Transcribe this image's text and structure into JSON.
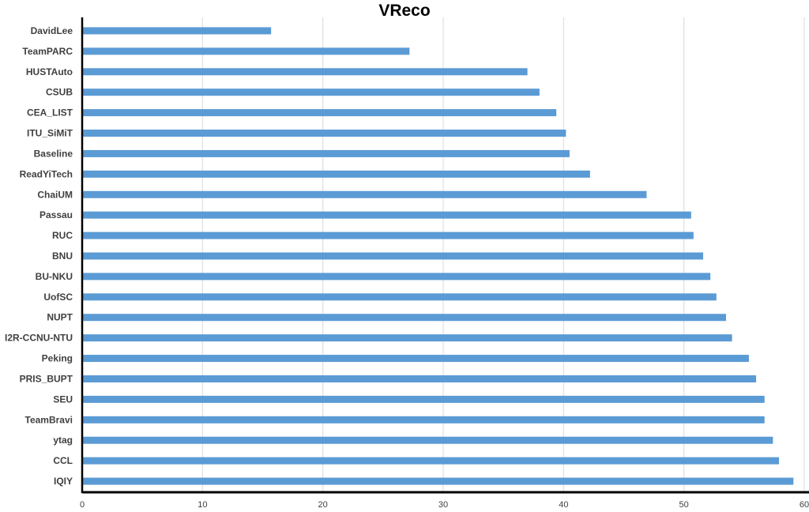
{
  "chart_data": {
    "type": "bar",
    "orientation": "horizontal",
    "title": "VReco",
    "xlabel": "",
    "ylabel": "",
    "xlim": [
      0,
      60
    ],
    "x_ticks": [
      0,
      10,
      20,
      30,
      40,
      50,
      60
    ],
    "grid": true,
    "legend": "none",
    "bar_color": "#5b9bd5",
    "categories": [
      "DavidLee",
      "TeamPARC",
      "HUSTAuto",
      "CSUB",
      "CEA_LIST",
      "ITU_SiMiT",
      "Baseline",
      "ReadYiTech",
      "ChaiUM",
      "Passau",
      "RUC",
      "BNU",
      "BU-NKU",
      "UofSC",
      "NUPT",
      "I2R-CCNU-NTU",
      "Peking",
      "PRIS_BUPT",
      "SEU",
      "TeamBravi",
      "ytag",
      "CCL",
      "IQIY"
    ],
    "values": [
      15.7,
      27.2,
      37.0,
      38.0,
      39.4,
      40.2,
      40.5,
      42.2,
      46.9,
      50.6,
      50.8,
      51.6,
      52.2,
      52.7,
      53.5,
      54.0,
      55.4,
      56.0,
      56.7,
      56.7,
      57.4,
      57.9,
      59.1
    ]
  }
}
